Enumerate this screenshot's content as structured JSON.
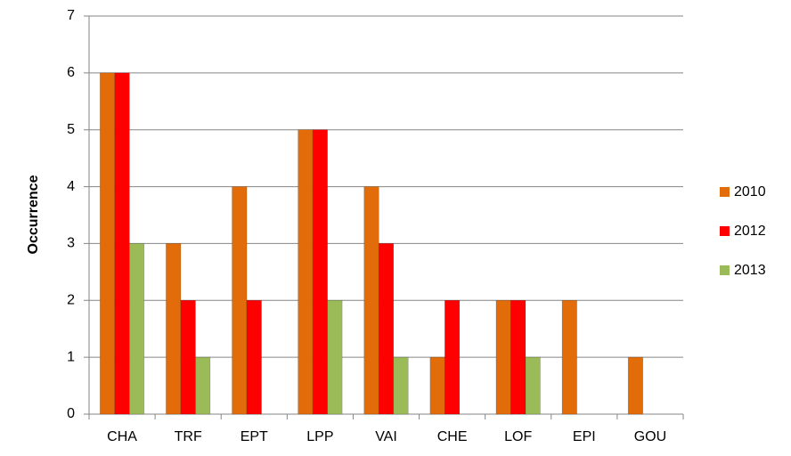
{
  "chart_data": {
    "type": "bar",
    "y_label": "Occurrence",
    "categories": [
      "CHA",
      "TRF",
      "EPT",
      "LPP",
      "VAI",
      "CHE",
      "LOF",
      "EPI",
      "GOU"
    ],
    "series": [
      {
        "name": "2010",
        "color": "#e36c0a",
        "values": [
          6,
          3,
          4,
          5,
          4,
          1,
          2,
          2,
          1
        ]
      },
      {
        "name": "2012",
        "color": "#ff0000",
        "values": [
          6,
          2,
          2,
          5,
          3,
          2,
          2,
          0,
          0
        ]
      },
      {
        "name": "2013",
        "color": "#9bbb59",
        "values": [
          3,
          1,
          0,
          2,
          1,
          0,
          1,
          0,
          0
        ]
      }
    ],
    "ylim": [
      0,
      7
    ],
    "yticks": [
      0,
      1,
      2,
      3,
      4,
      5,
      6,
      7
    ],
    "grid": true,
    "legend": "right"
  }
}
